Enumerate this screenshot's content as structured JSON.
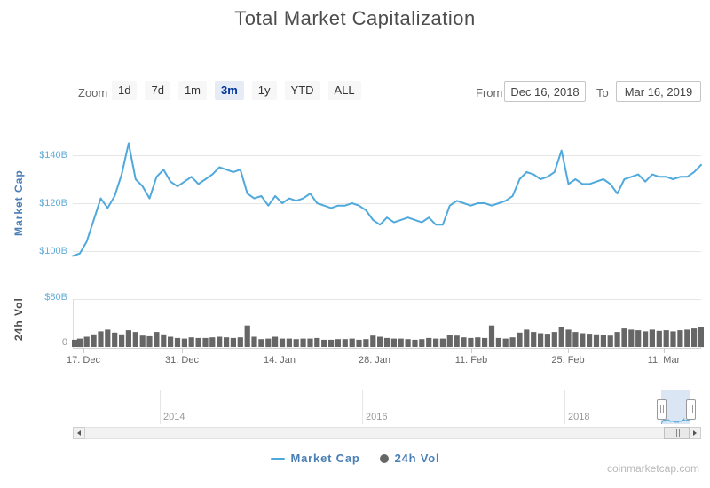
{
  "title": "Total Market Capitalization",
  "range_selector": {
    "zoom_label": "Zoom",
    "buttons": [
      "1d",
      "7d",
      "1m",
      "3m",
      "1y",
      "YTD",
      "ALL"
    ],
    "selected": "3m",
    "from_label": "From",
    "from_value": "Dec 16, 2018",
    "to_label": "To",
    "to_value": "Mar 16, 2019"
  },
  "y_axis_market_cap": {
    "title": "Market Cap",
    "tick_labels": [
      "$140B",
      "$120B",
      "$100B"
    ]
  },
  "y_axis_volume": {
    "title": "24h Vol",
    "tick_labels": [
      "$80B",
      "0"
    ]
  },
  "x_axis": {
    "tick_labels": [
      "17. Dec",
      "31. Dec",
      "14. Jan",
      "28. Jan",
      "11. Feb",
      "25. Feb",
      "11. Mar"
    ]
  },
  "navigator": {
    "tick_labels": [
      "2014",
      "2016",
      "2018"
    ]
  },
  "legend": {
    "items": [
      {
        "label": "Market Cap",
        "marker": "line"
      },
      {
        "label": "24h Vol",
        "marker": "circle"
      }
    ]
  },
  "watermark": "coinmarketcap.com",
  "colors": {
    "market_cap_line": "#4fa9dc",
    "volume_bar": "#666666",
    "axis_label_blue": "#64aed9",
    "axis_title_blue": "#4a7eb5",
    "legend_text": "#4a7fb5",
    "selected_button_bg": "#e6ebf5",
    "selected_button_text": "#003399",
    "navigator_mask": "rgba(125,165,215,0.28)"
  },
  "chart_data": [
    {
      "type": "line",
      "name": "Market Cap",
      "unit": "USD billions",
      "x_start": "2018-12-16",
      "x_end": "2019-03-16",
      "x_interval": "daily",
      "ylim": [
        95,
        150
      ],
      "y_gridlines": [
        100,
        120,
        140
      ],
      "x_tick_labels": [
        "17. Dec",
        "31. Dec",
        "14. Jan",
        "28. Jan",
        "11. Feb",
        "25. Feb",
        "11. Mar"
      ],
      "values": [
        98,
        99,
        104,
        113,
        122,
        118,
        123,
        132,
        145,
        130,
        127,
        122,
        131,
        134,
        129,
        127,
        129,
        131,
        128,
        130,
        132,
        135,
        134,
        133,
        134,
        124,
        122,
        123,
        119,
        123,
        120,
        122,
        121,
        122,
        124,
        120,
        119,
        118,
        119,
        119,
        120,
        119,
        117,
        113,
        111,
        114,
        112,
        113,
        114,
        113,
        112,
        114,
        111,
        111,
        119,
        121,
        120,
        119,
        120,
        120,
        119,
        120,
        121,
        123,
        130,
        133,
        132,
        130,
        131,
        133,
        142,
        128,
        130,
        128,
        128,
        129,
        130,
        128,
        124,
        130,
        131,
        132,
        129,
        132,
        131,
        131,
        130,
        131,
        131,
        133,
        136
      ]
    },
    {
      "type": "bar",
      "name": "24h Vol",
      "unit": "USD billions",
      "x_start": "2018-12-16",
      "x_end": "2019-03-16",
      "x_interval": "daily",
      "ylim": [
        0,
        80
      ],
      "y_gridlines": [
        0,
        80
      ],
      "values": [
        12,
        14,
        17,
        21,
        26,
        29,
        24,
        21,
        28,
        25,
        19,
        18,
        25,
        21,
        17,
        15,
        14,
        16,
        15,
        15,
        16,
        17,
        16,
        15,
        16,
        36,
        17,
        13,
        14,
        17,
        14,
        14,
        13,
        14,
        14,
        15,
        12,
        12,
        13,
        13,
        14,
        12,
        13,
        19,
        17,
        15,
        14,
        14,
        13,
        12,
        13,
        15,
        14,
        14,
        20,
        19,
        16,
        15,
        16,
        15,
        36,
        15,
        14,
        16,
        24,
        29,
        25,
        23,
        22,
        25,
        33,
        29,
        25,
        23,
        22,
        21,
        20,
        19,
        25,
        31,
        29,
        28,
        26,
        29,
        27,
        28,
        26,
        28,
        29,
        31,
        34
      ]
    }
  ]
}
